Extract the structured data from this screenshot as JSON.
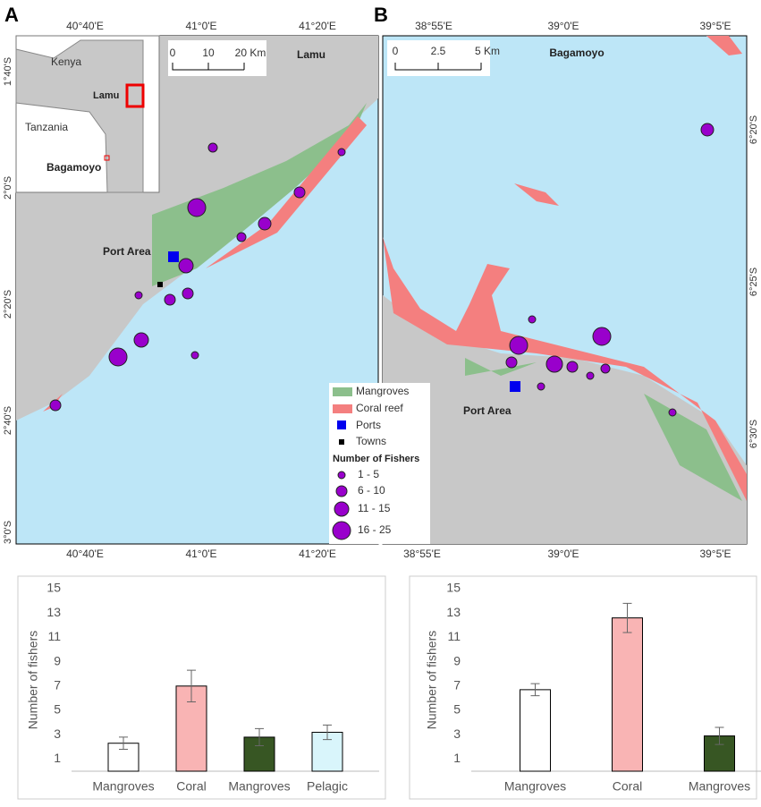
{
  "maps": [
    {
      "label": "A",
      "lon_labels": [
        "40°40'E",
        "41°0'E",
        "41°20'E"
      ],
      "lat_labels": [
        "1°40'S",
        "2°0'S",
        "2°20'S",
        "2°40'S",
        "3°0'S"
      ],
      "scale_labels": [
        "0",
        "10",
        "20 Km"
      ],
      "inset_labels": [
        "Kenya",
        "Lamu",
        "Tanzania",
        "Bagamoyo"
      ],
      "places": [
        "Lamu",
        "Port Area"
      ]
    },
    {
      "label": "B",
      "lon_labels": [
        "38°55'E",
        "39°0'E",
        "39°5'E"
      ],
      "lat_labels": [
        "6°20'S",
        "6°25'S",
        "6°30'S"
      ],
      "scale_labels": [
        "0",
        "2.5",
        "5 Km"
      ],
      "places": [
        "Bagamoyo",
        "Port Area"
      ]
    }
  ],
  "legend": {
    "items": [
      "Mangroves",
      "Coral reef",
      "Ports",
      "Towns"
    ],
    "title": "Number of Fishers",
    "sizes": [
      "1 - 5",
      "6 - 10",
      "11 - 15",
      "16 - 25"
    ]
  },
  "chart_data": [
    {
      "type": "bar",
      "y_label": "Number of fishers",
      "categories": [
        "Mangroves",
        "Coral",
        "Mangroves",
        "Pelagic"
      ],
      "values": [
        2.3,
        7.0,
        2.8,
        3.2
      ],
      "errors": [
        0.5,
        1.3,
        0.7,
        0.6
      ],
      "colors": [
        "#ffffff",
        "#f9b4b4",
        "#375623",
        "#d9f5fb"
      ],
      "ylim": [
        0,
        15
      ],
      "yticks": [
        1,
        3,
        5,
        7,
        9,
        11,
        13,
        15
      ]
    },
    {
      "type": "bar",
      "y_label": "Number of fishers",
      "categories": [
        "Mangroves",
        "Coral",
        "Mangroves"
      ],
      "values": [
        6.7,
        12.6,
        2.9
      ],
      "errors": [
        0.5,
        1.2,
        0.7
      ],
      "colors": [
        "#ffffff",
        "#f9b4b4",
        "#375623"
      ],
      "ylim": [
        0,
        15
      ],
      "yticks": [
        1,
        3,
        5,
        7,
        9,
        11,
        13,
        15
      ]
    }
  ]
}
